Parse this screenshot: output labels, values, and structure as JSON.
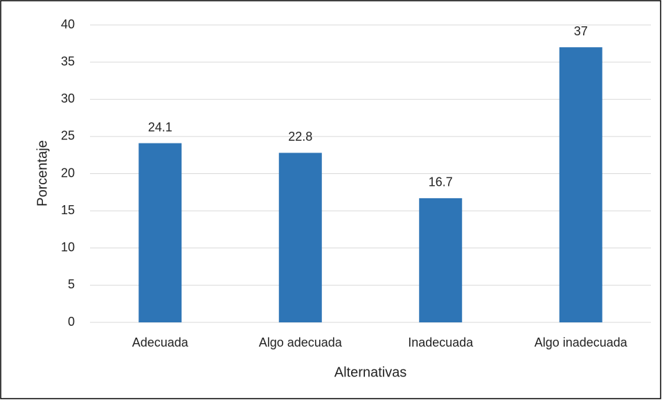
{
  "chart_data": {
    "type": "bar",
    "x_label": "Alternativas",
    "y_label": "Porcentaje",
    "categories": [
      "Adecuada",
      "Algo adecuada",
      "Inadecuada",
      "Algo inadecuada"
    ],
    "values": [
      24.1,
      22.8,
      16.7,
      37
    ],
    "color": "#2e75b6",
    "ylim": [
      0,
      40
    ],
    "yticks": [
      0,
      5,
      10,
      15,
      20,
      25,
      30,
      35,
      40
    ],
    "grid": true
  }
}
